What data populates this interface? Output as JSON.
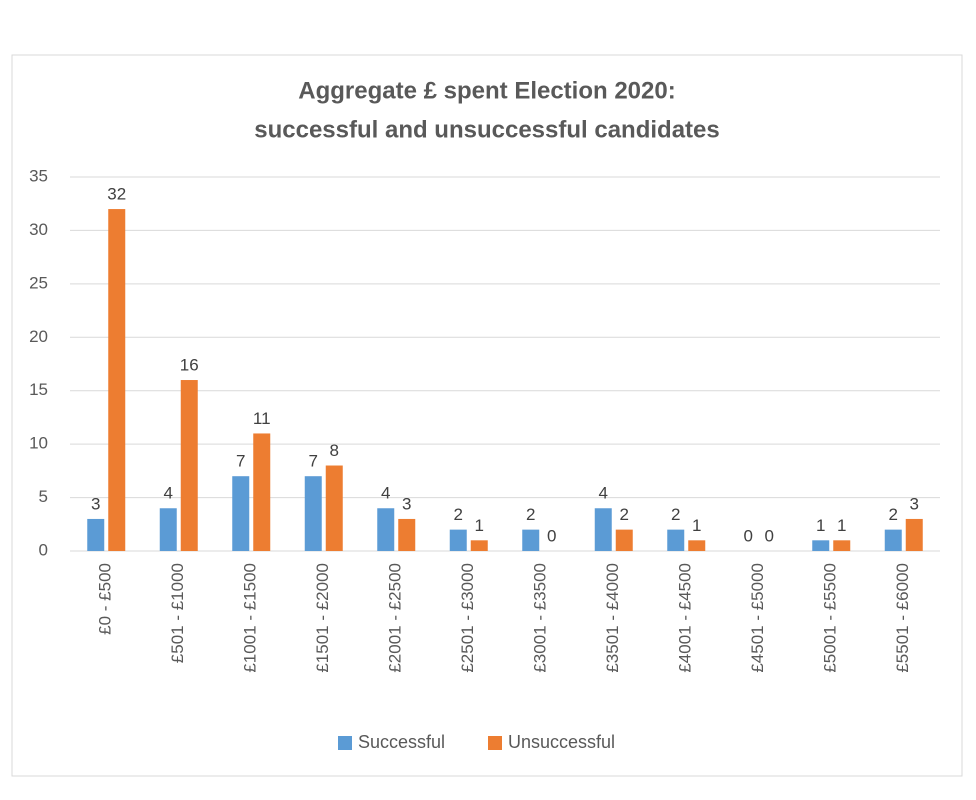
{
  "chart_data": {
    "type": "bar",
    "title": [
      "Aggregate £ spent Election 2020:",
      "successful and unsuccessful candidates"
    ],
    "categories": [
      "£0 - £500",
      "£501 - £1000",
      "£1001 - £1500",
      "£1501 - £2000",
      "£2001 - £2500",
      "£2501 - £3000",
      "£3001 - £3500",
      "£3501 - £4000",
      "£4001 - £4500",
      "£4501 - £5000",
      "£5001 - £5500",
      "£5501 - £6000"
    ],
    "series": [
      {
        "name": "Successful",
        "color": "#5b9bd5",
        "values": [
          3,
          4,
          7,
          7,
          4,
          2,
          2,
          4,
          2,
          0,
          1,
          2
        ]
      },
      {
        "name": "Unsuccessful",
        "color": "#ed7d31",
        "values": [
          32,
          16,
          11,
          8,
          3,
          1,
          0,
          2,
          1,
          0,
          1,
          3
        ]
      }
    ],
    "ylim": [
      0,
      35
    ],
    "yticks": [
      0,
      5,
      10,
      15,
      20,
      25,
      30,
      35
    ],
    "grid": true,
    "legend": "bottom"
  }
}
